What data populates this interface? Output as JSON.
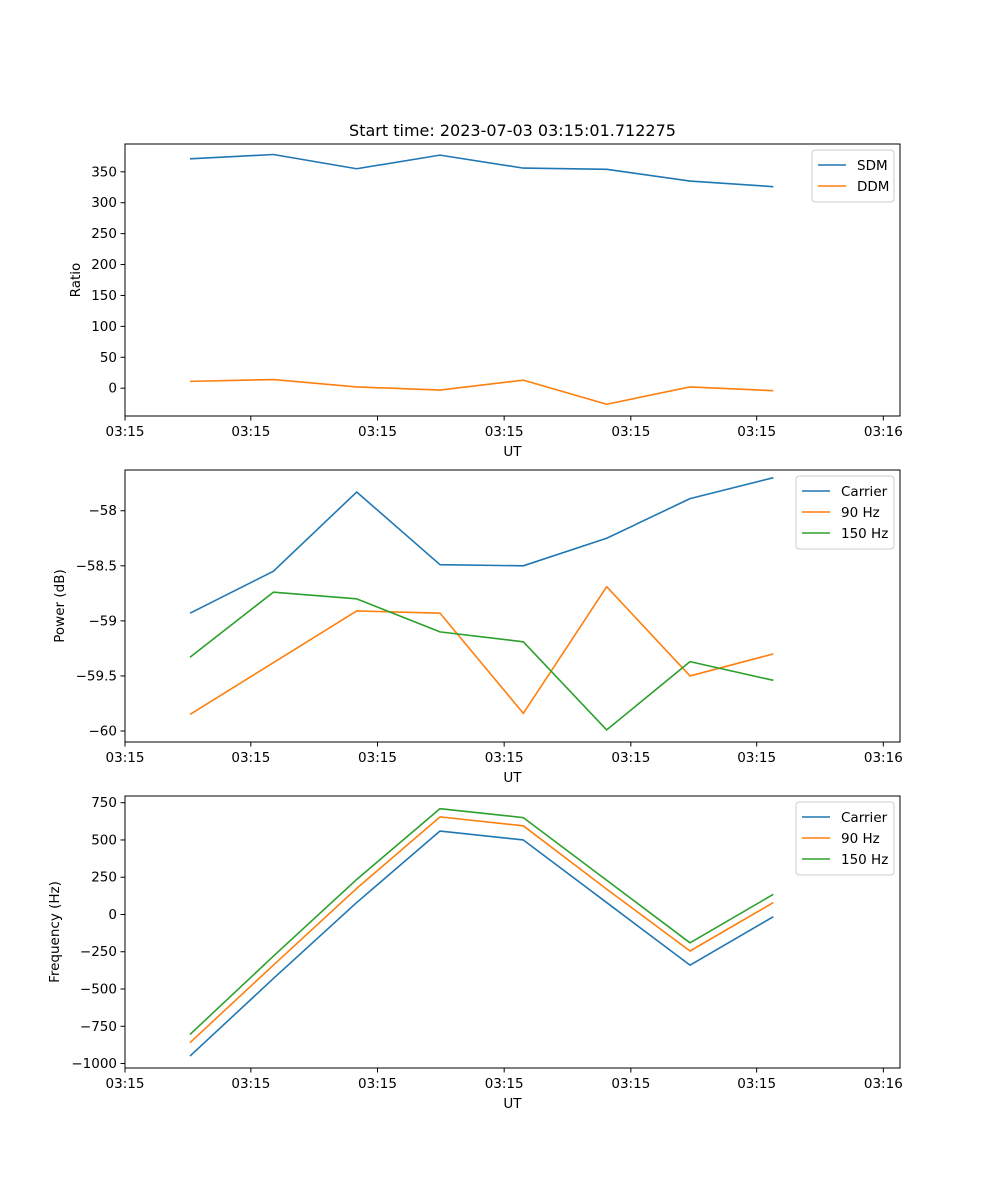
{
  "chart_data": [
    {
      "type": "line",
      "title": "Start time: 2023-07-03 03:15:01.712275",
      "xlabel": "UT",
      "ylabel": "Ratio",
      "x": [
        0,
        1,
        2,
        3,
        4,
        5,
        6,
        7
      ],
      "xlim": [
        -0.78,
        8.52
      ],
      "ylim": [
        -45,
        395
      ],
      "yticks": [
        0,
        50,
        100,
        150,
        200,
        250,
        300,
        350
      ],
      "xticks": [
        -0.78,
        0.73,
        2.25,
        3.77,
        5.29,
        6.8,
        8.32
      ],
      "xtick_labels": [
        "03:15",
        "03:15",
        "03:15",
        "03:15",
        "03:15",
        "03:15",
        "03:16"
      ],
      "legend": "upper right",
      "series": [
        {
          "name": "SDM",
          "color": "#1f77b4",
          "values": [
            371,
            378,
            355,
            377,
            356,
            354,
            335,
            326
          ]
        },
        {
          "name": "DDM",
          "color": "#ff7f0e",
          "values": [
            11,
            14,
            2,
            -3,
            13,
            -26,
            2,
            -4
          ]
        }
      ]
    },
    {
      "type": "line",
      "title": "",
      "xlabel": "UT",
      "ylabel": "Power (dB)",
      "x": [
        0,
        1,
        2,
        3,
        4,
        5,
        6,
        7
      ],
      "xlim": [
        -0.78,
        8.52
      ],
      "ylim": [
        -60.1,
        -57.63
      ],
      "yticks": [
        -60.0,
        -59.5,
        -59.0,
        -58.5,
        -58.0
      ],
      "xticks": [
        -0.78,
        0.73,
        2.25,
        3.77,
        5.29,
        6.8,
        8.32
      ],
      "xtick_labels": [
        "03:15",
        "03:15",
        "03:15",
        "03:15",
        "03:15",
        "03:15",
        "03:16"
      ],
      "legend": "upper right",
      "series": [
        {
          "name": "Carrier",
          "color": "#1f77b4",
          "values": [
            -58.93,
            -58.55,
            -57.83,
            -58.49,
            -58.5,
            -58.25,
            -57.89,
            -57.7
          ]
        },
        {
          "name": "90 Hz",
          "color": "#ff7f0e",
          "values": [
            -59.85,
            -59.38,
            -58.91,
            -58.93,
            -59.84,
            -58.69,
            -59.5,
            -59.3
          ]
        },
        {
          "name": "150 Hz",
          "color": "#2ca02c",
          "values": [
            -59.33,
            -58.74,
            -58.8,
            -59.1,
            -59.19,
            -59.99,
            -59.37,
            -59.54
          ]
        }
      ]
    },
    {
      "type": "line",
      "title": "",
      "xlabel": "UT",
      "ylabel": "Frequency (Hz)",
      "x": [
        0,
        1,
        2,
        3,
        4,
        5,
        6,
        7
      ],
      "xlim": [
        -0.78,
        8.52
      ],
      "ylim": [
        -1030,
        795
      ],
      "yticks": [
        -1000,
        -750,
        -500,
        -250,
        0,
        250,
        500,
        750
      ],
      "xticks": [
        -0.78,
        0.73,
        2.25,
        3.77,
        5.29,
        6.8,
        8.32
      ],
      "xtick_labels": [
        "03:15",
        "03:15",
        "03:15",
        "03:15",
        "03:15",
        "03:15",
        "03:16"
      ],
      "legend": "upper right",
      "series": [
        {
          "name": "Carrier",
          "color": "#1f77b4",
          "values": [
            -950,
            -430,
            80,
            560,
            500,
            80,
            -340,
            -15
          ]
        },
        {
          "name": "90 Hz",
          "color": "#ff7f0e",
          "values": [
            -860,
            -340,
            175,
            655,
            595,
            170,
            -245,
            80
          ]
        },
        {
          "name": "150 Hz",
          "color": "#2ca02c",
          "values": [
            -805,
            -280,
            235,
            710,
            650,
            230,
            -190,
            135
          ]
        }
      ]
    }
  ]
}
